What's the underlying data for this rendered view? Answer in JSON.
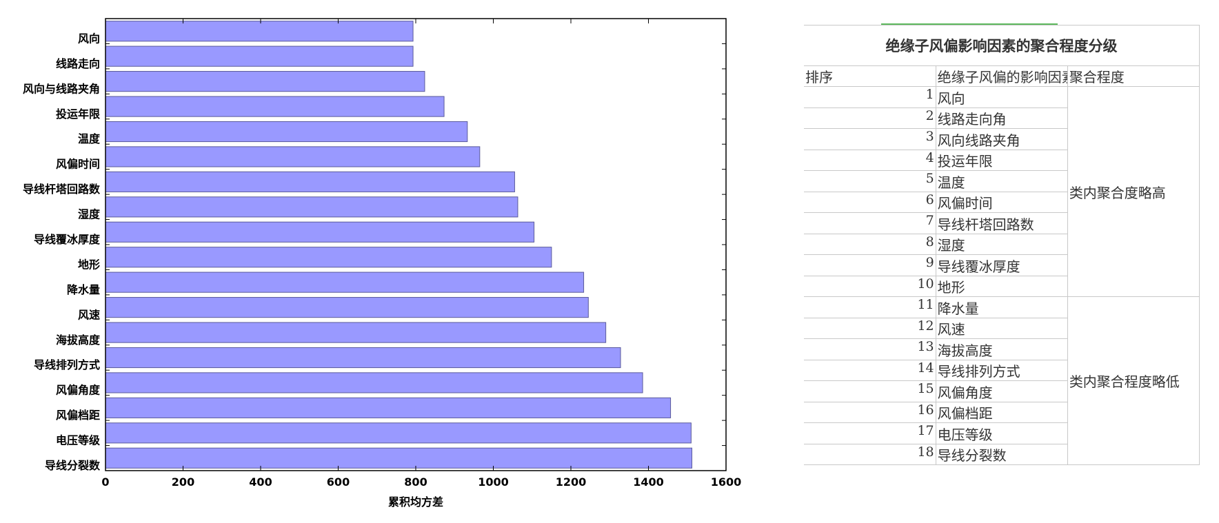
{
  "chart_data": {
    "type": "bar",
    "orientation": "horizontal",
    "categories": [
      "风向",
      "线路走向",
      "风向与线路夹角",
      "投运年限",
      "温度",
      "风偏时间",
      "导线杆塔回路数",
      "湿度",
      "导线覆冰厚度",
      "地形",
      "降水量",
      "风速",
      "海拔高度",
      "导线排列方式",
      "风偏角度",
      "风偏档距",
      "电压等级",
      "导线分裂数"
    ],
    "values": [
      793,
      793,
      823,
      873,
      933,
      965,
      1055,
      1063,
      1105,
      1150,
      1233,
      1245,
      1290,
      1328,
      1385,
      1457,
      1510,
      1512
    ],
    "title": "",
    "xlabel": "累积均方差",
    "ylabel": "",
    "xlim": [
      0,
      1600
    ],
    "xticks": [
      0,
      200,
      400,
      600,
      800,
      1000,
      1200,
      1400,
      1600
    ],
    "xtick_labels": [
      "0",
      "200",
      "400",
      "600",
      "800",
      "1000",
      "1200",
      "1400",
      "1600"
    ],
    "bar_color": "#9999ff",
    "bar_edge_color": "#5a5a9a",
    "grid": false,
    "legend": "none"
  },
  "table": {
    "title": "绝缘子风偏影响因素的聚合程度分级",
    "headers": {
      "rank": "排序",
      "factor": "绝缘子风偏的影响因素",
      "group": "聚合程度"
    },
    "groups": [
      {
        "label": "类内聚合度略高"
      },
      {
        "label": "类内聚合程度略低"
      }
    ],
    "rows": [
      {
        "rank": "1",
        "factor": "风向"
      },
      {
        "rank": "2",
        "factor": "线路走向角"
      },
      {
        "rank": "3",
        "factor": "风向线路夹角"
      },
      {
        "rank": "4",
        "factor": "投运年限"
      },
      {
        "rank": "5",
        "factor": "温度"
      },
      {
        "rank": "6",
        "factor": "风偏时间"
      },
      {
        "rank": "7",
        "factor": "导线杆塔回路数"
      },
      {
        "rank": "8",
        "factor": "湿度"
      },
      {
        "rank": "9",
        "factor": "导线覆冰厚度"
      },
      {
        "rank": "10",
        "factor": "地形"
      },
      {
        "rank": "11",
        "factor": "降水量"
      },
      {
        "rank": "12",
        "factor": "风速"
      },
      {
        "rank": "13",
        "factor": "海拔高度"
      },
      {
        "rank": "14",
        "factor": "导线排列方式"
      },
      {
        "rank": "15",
        "factor": "风偏角度"
      },
      {
        "rank": "16",
        "factor": "风偏档距"
      },
      {
        "rank": "17",
        "factor": "电压等级"
      },
      {
        "rank": "18",
        "factor": "导线分裂数"
      }
    ]
  }
}
